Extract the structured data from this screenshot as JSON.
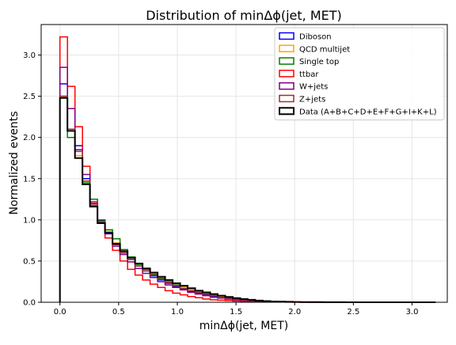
{
  "chart_data": {
    "type": "step-histogram",
    "title": "Distribution of minΔϕ(jet, MET)",
    "xlabel": "minΔϕ(jet, MET)",
    "ylabel": "Normalized events",
    "xlim": [
      -0.16,
      3.3
    ],
    "ylim": [
      0,
      3.37
    ],
    "xticks": [
      0.0,
      0.5,
      1.0,
      1.5,
      2.0,
      2.5,
      3.0
    ],
    "xtick_labels": [
      "0.0",
      "0.5",
      "1.0",
      "1.5",
      "2.0",
      "2.5",
      "3.0"
    ],
    "yticks": [
      0.0,
      0.5,
      1.0,
      1.5,
      2.0,
      2.5,
      3.0
    ],
    "ytick_labels": [
      "0.0",
      "0.5",
      "1.0",
      "1.5",
      "2.0",
      "2.5",
      "3.0"
    ],
    "grid": true,
    "legend_position": "top-right",
    "bin_edges": [
      0.0,
      0.064,
      0.128,
      0.192,
      0.256,
      0.32,
      0.384,
      0.448,
      0.512,
      0.576,
      0.64,
      0.704,
      0.768,
      0.832,
      0.896,
      0.96,
      1.024,
      1.088,
      1.152,
      1.216,
      1.28,
      1.344,
      1.408,
      1.472,
      1.536,
      1.6,
      1.664,
      1.728,
      1.792,
      1.856,
      1.92,
      1.984,
      2.048,
      2.112,
      2.176,
      2.24,
      2.304,
      2.368,
      2.432,
      2.496,
      2.56,
      2.624,
      2.688,
      2.752,
      2.816,
      2.88,
      2.944,
      3.008,
      3.072,
      3.136,
      3.2
    ],
    "series": [
      {
        "name": "Diboson",
        "color": "#0000ff",
        "values": [
          2.65,
          2.1,
          1.9,
          1.5,
          1.2,
          0.99,
          0.85,
          0.7,
          0.6,
          0.52,
          0.44,
          0.38,
          0.32,
          0.27,
          0.23,
          0.19,
          0.16,
          0.13,
          0.11,
          0.09,
          0.07,
          0.05,
          0.04,
          0.03,
          0.02,
          0.015,
          0.01,
          0.008,
          0.006,
          0.004,
          0.003,
          0.002,
          0.002,
          0.001,
          0.001,
          0.001,
          0.001,
          0.0,
          0.0,
          0.0,
          0.0,
          0.0,
          0.0,
          0.0,
          0.0,
          0.0,
          0.0,
          0.0,
          0.0,
          0.0
        ]
      },
      {
        "name": "QCD multijet",
        "color": "#ffa500",
        "values": [
          2.5,
          2.08,
          1.78,
          1.47,
          1.18,
          0.97,
          0.86,
          0.72,
          0.62,
          0.55,
          0.47,
          0.41,
          0.36,
          0.31,
          0.27,
          0.23,
          0.19,
          0.16,
          0.14,
          0.11,
          0.09,
          0.07,
          0.06,
          0.05,
          0.04,
          0.03,
          0.02,
          0.015,
          0.01,
          0.008,
          0.006,
          0.004,
          0.003,
          0.002,
          0.002,
          0.001,
          0.001,
          0.001,
          0.0,
          0.0,
          0.0,
          0.0,
          0.0,
          0.0,
          0.0,
          0.0,
          0.0,
          0.0,
          0.0,
          0.0
        ]
      },
      {
        "name": "Single top",
        "color": "#008000",
        "values": [
          2.5,
          2.0,
          1.75,
          1.45,
          1.25,
          1.0,
          0.88,
          0.77,
          0.64,
          0.55,
          0.46,
          0.4,
          0.34,
          0.29,
          0.25,
          0.21,
          0.17,
          0.14,
          0.12,
          0.1,
          0.08,
          0.06,
          0.05,
          0.04,
          0.03,
          0.02,
          0.015,
          0.01,
          0.008,
          0.006,
          0.004,
          0.003,
          0.002,
          0.002,
          0.001,
          0.001,
          0.0,
          0.0,
          0.0,
          0.0,
          0.0,
          0.0,
          0.0,
          0.0,
          0.0,
          0.0,
          0.0,
          0.0,
          0.0,
          0.0
        ]
      },
      {
        "name": "ttbar",
        "color": "#ff0000",
        "values": [
          3.22,
          2.62,
          2.13,
          1.65,
          1.22,
          0.96,
          0.78,
          0.63,
          0.5,
          0.4,
          0.33,
          0.27,
          0.22,
          0.18,
          0.14,
          0.11,
          0.09,
          0.07,
          0.055,
          0.04,
          0.03,
          0.025,
          0.02,
          0.015,
          0.01,
          0.008,
          0.006,
          0.004,
          0.003,
          0.002,
          0.001,
          0.001,
          0.001,
          0.0,
          0.0,
          0.0,
          0.0,
          0.0,
          0.0,
          0.0,
          0.0,
          0.0,
          0.0,
          0.0,
          0.0,
          0.0,
          0.0,
          0.0,
          0.0,
          0.0
        ]
      },
      {
        "name": "W+jets",
        "color": "#800080",
        "values": [
          2.85,
          2.35,
          1.85,
          1.55,
          1.2,
          0.98,
          0.83,
          0.68,
          0.58,
          0.49,
          0.41,
          0.35,
          0.3,
          0.25,
          0.21,
          0.18,
          0.15,
          0.12,
          0.1,
          0.08,
          0.06,
          0.05,
          0.04,
          0.03,
          0.02,
          0.015,
          0.01,
          0.008,
          0.006,
          0.004,
          0.003,
          0.002,
          0.001,
          0.001,
          0.001,
          0.0,
          0.0,
          0.0,
          0.0,
          0.0,
          0.0,
          0.0,
          0.0,
          0.0,
          0.0,
          0.0,
          0.0,
          0.0,
          0.0,
          0.0
        ]
      },
      {
        "name": "Z+jets",
        "color": "#a52a2a",
        "values": [
          2.5,
          2.1,
          1.83,
          1.47,
          1.18,
          0.98,
          0.84,
          0.7,
          0.6,
          0.52,
          0.44,
          0.38,
          0.33,
          0.28,
          0.24,
          0.2,
          0.17,
          0.14,
          0.12,
          0.1,
          0.08,
          0.06,
          0.05,
          0.04,
          0.03,
          0.02,
          0.015,
          0.01,
          0.008,
          0.006,
          0.004,
          0.003,
          0.002,
          0.002,
          0.001,
          0.001,
          0.0,
          0.0,
          0.0,
          0.0,
          0.0,
          0.0,
          0.0,
          0.0,
          0.0,
          0.0,
          0.0,
          0.0,
          0.0,
          0.0
        ]
      },
      {
        "name": "Data (A+B+C+D+E+F+G+I+K+L)",
        "color": "#000000",
        "values": [
          2.48,
          2.08,
          1.75,
          1.43,
          1.16,
          0.96,
          0.84,
          0.71,
          0.62,
          0.54,
          0.47,
          0.41,
          0.36,
          0.31,
          0.27,
          0.23,
          0.2,
          0.17,
          0.14,
          0.12,
          0.1,
          0.08,
          0.065,
          0.05,
          0.04,
          0.03,
          0.02,
          0.015,
          0.01,
          0.008,
          0.006,
          0.004,
          0.003,
          0.002,
          0.002,
          0.001,
          0.001,
          0.001,
          0.0,
          0.0,
          0.0,
          0.0,
          0.0,
          0.0,
          0.0,
          0.0,
          0.0,
          0.0,
          0.0,
          0.0
        ]
      }
    ]
  }
}
